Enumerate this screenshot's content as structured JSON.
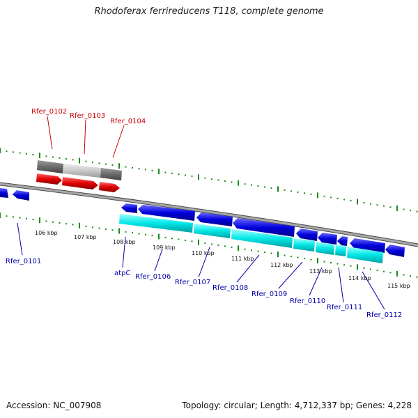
{
  "title": "Rhodoferax ferrireducens T118, complete genome",
  "footer": {
    "accession": "Accession: NC_007908",
    "summary": "Topology: circular; Length: 4,712,337 bp; Genes: 4,228"
  },
  "colors": {
    "backbone": "#888888",
    "ticks": "#1a8a1a",
    "forward_gene": "#e00000",
    "reverse_gene": "#0000dd",
    "reverse_cds": "#00e6e6",
    "forward_cds_dark": "#6b6b6b",
    "forward_cds_light": "#c8c8c8",
    "forward_label": "#cc0000",
    "reverse_label": "#0000aa"
  },
  "kbp_labels": [
    "106 kbp",
    "107 kbp",
    "108 kbp",
    "109 kbp",
    "110 kbp",
    "111 kbp",
    "112 kbp",
    "113 kbp",
    "114 kbp",
    "115 kbp"
  ],
  "forward_labels": [
    "Rfer_0102",
    "Rfer_0103",
    "Rfer_0104"
  ],
  "reverse_labels": [
    "Rfer_0101",
    "atpC",
    "Rfer_0106",
    "Rfer_0107",
    "Rfer_0108",
    "Rfer_0109",
    "Rfer_0110",
    "Rfer_0111",
    "Rfer_0112"
  ]
}
